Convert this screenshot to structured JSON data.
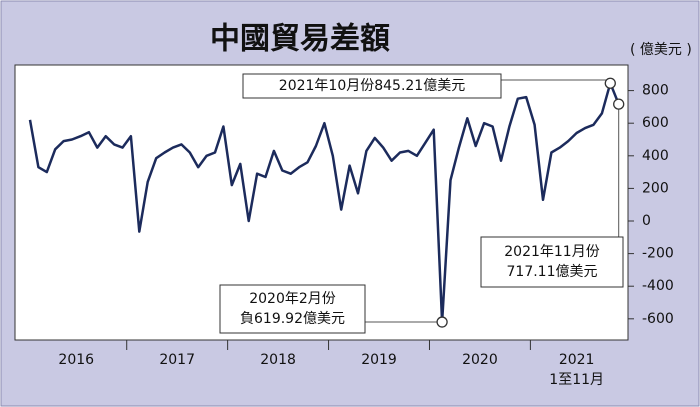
{
  "chart_data": {
    "type": "line",
    "title": "中國貿易差額",
    "y_unit": "( 億美元 )",
    "years": [
      "2016",
      "2017",
      "2018",
      "2019",
      "2020",
      "2021"
    ],
    "year_note": "1至11月",
    "color": "#1c2b5c",
    "values": [
      620,
      330,
      300,
      440,
      490,
      500,
      520,
      545,
      450,
      520,
      470,
      450,
      520,
      -65,
      240,
      385,
      420,
      450,
      470,
      420,
      330,
      400,
      420,
      580,
      220,
      350,
      0,
      290,
      270,
      430,
      310,
      290,
      330,
      360,
      460,
      600,
      400,
      70,
      340,
      170,
      430,
      510,
      450,
      370,
      420,
      430,
      400,
      480,
      560,
      -619.92,
      250,
      450,
      630,
      460,
      600,
      580,
      370,
      580,
      750,
      760,
      590,
      130,
      420,
      450,
      490,
      540,
      570,
      590,
      660,
      845.21,
      717.11
    ],
    "ylim": [
      -730,
      957
    ],
    "yticks": [
      800,
      600,
      400,
      200,
      0,
      -200,
      -400,
      -600
    ],
    "annotations": [
      {
        "lines": [
          "2021年10月份845.21億美元"
        ]
      },
      {
        "lines": [
          "2021年11月份",
          "717.11億美元"
        ]
      },
      {
        "lines": [
          "2020年2月份",
          "負619.92億美元"
        ]
      }
    ]
  }
}
